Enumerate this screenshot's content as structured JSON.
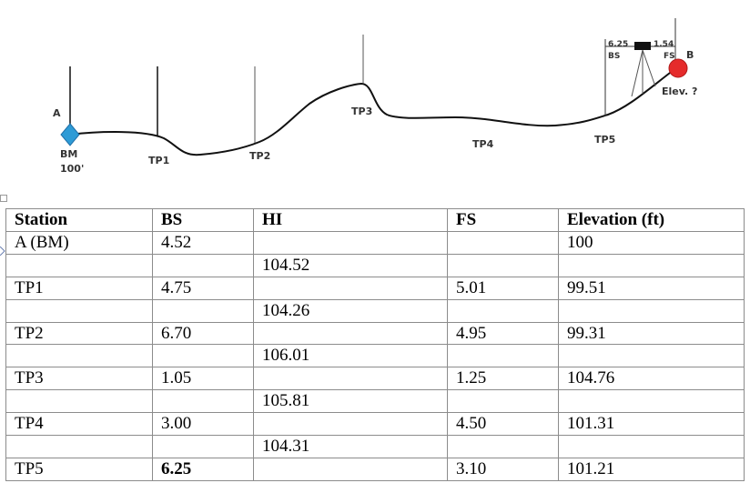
{
  "diagram": {
    "station_a": "A",
    "bm_label": "BM",
    "bm_elev": "100'",
    "tp1": "TP1",
    "tp2": "TP2",
    "tp3": "TP3",
    "tp4": "TP4",
    "tp5": "TP5",
    "station_b": "B",
    "elev_query": "Elev. ?",
    "bs_reading": "6.25",
    "bs_tag": "BS",
    "fs_reading": "1.54",
    "fs_tag": "FS",
    "colors": {
      "bm_marker": "#2e9bd6",
      "b_marker": "#e52b2b",
      "instrument": "#111111",
      "ground": "#111111"
    }
  },
  "table": {
    "headers": [
      "Station",
      "BS",
      "HI",
      "FS",
      "Elevation (ft)"
    ],
    "rows": [
      [
        "A (BM)",
        "4.52",
        "",
        "",
        "100"
      ],
      [
        "",
        "",
        "104.52",
        "",
        ""
      ],
      [
        "TP1",
        "4.75",
        "",
        "5.01",
        "99.51"
      ],
      [
        "",
        "",
        "104.26",
        "",
        ""
      ],
      [
        "TP2",
        "6.70",
        "",
        "4.95",
        "99.31"
      ],
      [
        "",
        "",
        "106.01",
        "",
        ""
      ],
      [
        "TP3",
        "1.05",
        "",
        "1.25",
        "104.76"
      ],
      [
        "",
        "",
        "105.81",
        "",
        ""
      ],
      [
        "TP4",
        "3.00",
        "",
        "4.50",
        "101.31"
      ],
      [
        "",
        "",
        "104.31",
        "",
        ""
      ],
      [
        "TP5",
        "6.25",
        "",
        "3.10",
        "101.21"
      ]
    ],
    "bold_cells": [
      [
        10,
        1
      ]
    ]
  }
}
